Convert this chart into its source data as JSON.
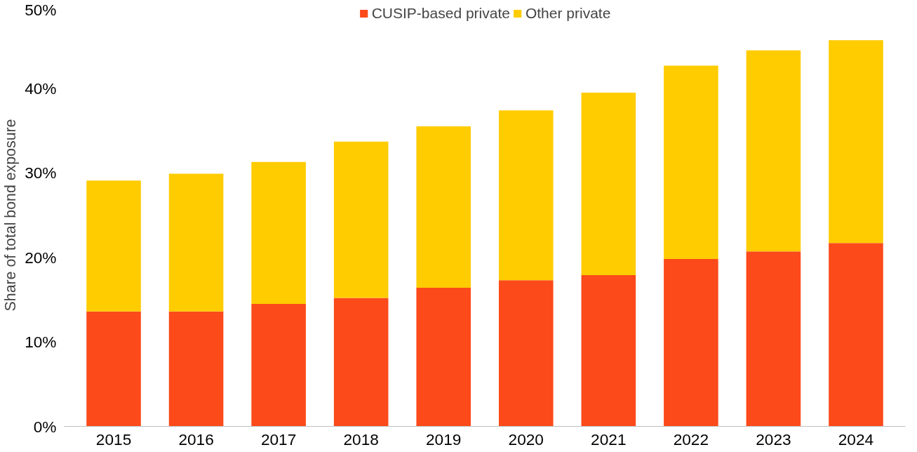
{
  "chart_data": {
    "type": "bar",
    "stacked": true,
    "ylabel": "Share of total bond exposure",
    "categories": [
      "2015",
      "2016",
      "2017",
      "2018",
      "2019",
      "2020",
      "2021",
      "2022",
      "2023",
      "2024"
    ],
    "series": [
      {
        "name": "CUSIP-based private",
        "color": "#fc4a1a",
        "values": [
          13.6,
          13.6,
          14.5,
          15.2,
          16.4,
          17.3,
          17.9,
          19.8,
          20.7,
          21.7
        ]
      },
      {
        "name": "Other private",
        "color": "#ffcc00",
        "values": [
          15.5,
          16.3,
          16.8,
          18.5,
          19.1,
          20.1,
          21.6,
          22.9,
          23.8,
          24.0
        ]
      }
    ],
    "ylim": [
      0,
      50
    ],
    "yticks": [
      {
        "value": 0,
        "label": "0%"
      },
      {
        "value": 10,
        "label": "10%"
      },
      {
        "value": 20,
        "label": "20%"
      },
      {
        "value": 30,
        "label": "30%"
      },
      {
        "value": 40,
        "label": "40%"
      },
      {
        "value": 50,
        "label": "50%"
      }
    ],
    "grid": false,
    "legend": "top"
  }
}
